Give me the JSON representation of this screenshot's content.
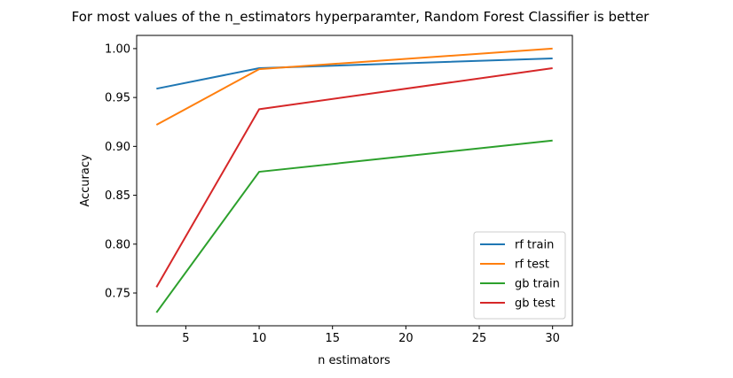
{
  "chart_data": {
    "type": "line",
    "title": "For most values of the n_estimators hyperparamter, Random Forest Classifier is better",
    "xlabel": "n estimators",
    "ylabel": "Accuracy",
    "x": [
      3,
      10,
      30
    ],
    "xlim": [
      1.65,
      31.35
    ],
    "ylim": [
      0.7165,
      1.0135
    ],
    "xticks": [
      5,
      10,
      15,
      20,
      25,
      30
    ],
    "yticks": [
      0.75,
      0.8,
      0.85,
      0.9,
      0.95,
      1.0
    ],
    "ytick_labels": [
      "0.75",
      "0.80",
      "0.85",
      "0.90",
      "0.95",
      "1.00"
    ],
    "grid": false,
    "legend_position": "lower right",
    "series": [
      {
        "name": "rf train",
        "color": "#1f77b4",
        "values": [
          0.959,
          0.98,
          0.99
        ]
      },
      {
        "name": "rf test",
        "color": "#ff7f0e",
        "values": [
          0.922,
          0.979,
          1.0
        ]
      },
      {
        "name": "gb train",
        "color": "#2ca02c",
        "values": [
          0.73,
          0.874,
          0.906
        ]
      },
      {
        "name": "gb test",
        "color": "#d62728",
        "values": [
          0.756,
          0.938,
          0.98
        ]
      }
    ]
  }
}
